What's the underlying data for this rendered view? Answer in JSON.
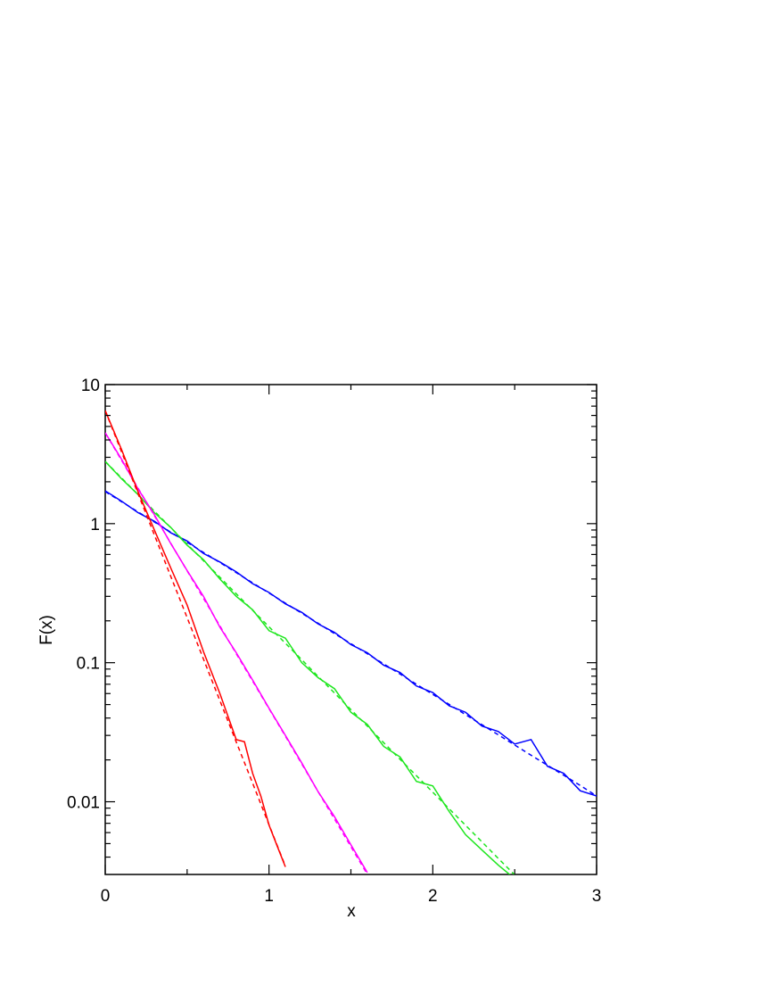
{
  "chart_data": {
    "type": "line",
    "xlabel": "x",
    "ylabel": "F(x)",
    "xlim": [
      0,
      3
    ],
    "xticks": [
      0,
      1,
      2,
      3
    ],
    "xminor_ticks": [
      0.5,
      1.5,
      2.5
    ],
    "ylim": [
      0.003,
      10
    ],
    "yticks": [
      0.01,
      0.1,
      1,
      10
    ],
    "ylog": true,
    "yminor_ticks": [
      0.004,
      0.005,
      0.006,
      0.007,
      0.008,
      0.009,
      0.02,
      0.03,
      0.04,
      0.05,
      0.06,
      0.07,
      0.08,
      0.09,
      0.2,
      0.3,
      0.4,
      0.5,
      0.6,
      0.7,
      0.8,
      0.9,
      2,
      3,
      4,
      5,
      6,
      7,
      8,
      9
    ],
    "series": [
      {
        "color": "#0000ff",
        "dashed": false,
        "x": [
          0,
          0.1,
          0.2,
          0.3,
          0.4,
          0.5,
          0.6,
          0.7,
          0.8,
          0.9,
          1.0,
          1.1,
          1.2,
          1.3,
          1.4,
          1.5,
          1.6,
          1.7,
          1.8,
          1.9,
          2.0,
          2.1,
          2.2,
          2.3,
          2.4,
          2.5,
          2.6,
          2.7,
          2.8,
          2.9,
          3.0
        ],
        "values": [
          1.72,
          1.45,
          1.2,
          1.04,
          0.86,
          0.75,
          0.61,
          0.53,
          0.45,
          0.37,
          0.32,
          0.265,
          0.23,
          0.19,
          0.165,
          0.135,
          0.118,
          0.096,
          0.085,
          0.068,
          0.061,
          0.049,
          0.044,
          0.035,
          0.032,
          0.026,
          0.028,
          0.018,
          0.016,
          0.012,
          0.011
        ]
      },
      {
        "color": "#0000ff",
        "dashed": true,
        "x": [
          0,
          0.1,
          0.2,
          0.3,
          0.4,
          0.5,
          0.6,
          0.7,
          0.8,
          0.9,
          1.0,
          1.1,
          1.2,
          1.3,
          1.4,
          1.5,
          1.6,
          1.7,
          1.8,
          1.9,
          2.0,
          2.1,
          2.2,
          2.3,
          2.4,
          2.5,
          2.6,
          2.7,
          2.8,
          2.9,
          3.0
        ],
        "values": [
          1.7,
          1.437,
          1.215,
          1.027,
          0.868,
          0.734,
          0.621,
          0.525,
          0.444,
          0.375,
          0.317,
          0.268,
          0.227,
          0.192,
          0.162,
          0.137,
          0.116,
          0.098,
          0.0829,
          0.07,
          0.0592,
          0.0501,
          0.0423,
          0.0358,
          0.0303,
          0.0256,
          0.0216,
          0.0183,
          0.0155,
          0.0131,
          0.011
        ]
      },
      {
        "color": "#1ee61e",
        "dashed": false,
        "x": [
          0,
          0.1,
          0.2,
          0.3,
          0.4,
          0.5,
          0.6,
          0.7,
          0.8,
          0.9,
          1.0,
          1.1,
          1.2,
          1.3,
          1.4,
          1.5,
          1.6,
          1.7,
          1.8,
          1.9,
          2.0,
          2.1,
          2.2,
          2.3,
          2.4,
          2.5
        ],
        "values": [
          2.8,
          2.1,
          1.62,
          1.2,
          0.94,
          0.7,
          0.55,
          0.4,
          0.3,
          0.24,
          0.17,
          0.15,
          0.1,
          0.078,
          0.065,
          0.044,
          0.036,
          0.025,
          0.021,
          0.014,
          0.013,
          0.0085,
          0.0058,
          0.0045,
          0.0035,
          0.0028
        ]
      },
      {
        "color": "#1ee61e",
        "dashed": true,
        "x": [
          0,
          0.1,
          0.2,
          0.3,
          0.4,
          0.5,
          0.6,
          0.7,
          0.8,
          0.9,
          1.0,
          1.1,
          1.2,
          1.3,
          1.4,
          1.5,
          1.6,
          1.7,
          1.8,
          1.9,
          2.0,
          2.1,
          2.2,
          2.3,
          2.4,
          2.5
        ],
        "values": [
          2.8,
          2.129,
          1.619,
          1.231,
          0.936,
          0.712,
          0.541,
          0.412,
          0.313,
          0.238,
          0.181,
          0.138,
          0.105,
          0.0796,
          0.0605,
          0.046,
          0.035,
          0.0266,
          0.0202,
          0.0154,
          0.0117,
          0.0089,
          0.00677,
          0.00515,
          0.00391,
          0.00298
        ]
      },
      {
        "color": "#ff00ff",
        "dashed": false,
        "x": [
          0,
          0.1,
          0.2,
          0.3,
          0.4,
          0.5,
          0.6,
          0.7,
          0.8,
          0.9,
          1.0,
          1.1,
          1.2,
          1.3,
          1.4,
          1.5,
          1.6
        ],
        "values": [
          4.5,
          2.9,
          1.78,
          1.16,
          0.72,
          0.46,
          0.3,
          0.18,
          0.118,
          0.075,
          0.047,
          0.03,
          0.019,
          0.0118,
          0.0078,
          0.0049,
          0.0031
        ]
      },
      {
        "color": "#ff00ff",
        "dashed": true,
        "x": [
          0,
          0.1,
          0.2,
          0.3,
          0.4,
          0.5,
          0.6,
          0.7,
          0.8,
          0.9,
          1.0,
          1.1,
          1.2,
          1.3,
          1.4,
          1.5,
          1.6
        ],
        "values": [
          4.5,
          2.849,
          1.804,
          1.143,
          0.723,
          0.458,
          0.29,
          0.184,
          0.116,
          0.0737,
          0.0467,
          0.0296,
          0.0187,
          0.0118,
          0.0075,
          0.00475,
          0.00301
        ]
      },
      {
        "color": "#ff0000",
        "dashed": false,
        "x": [
          0,
          0.1,
          0.2,
          0.3,
          0.4,
          0.5,
          0.6,
          0.7,
          0.8,
          0.85,
          0.9,
          0.95,
          1.0,
          1.05,
          1.1
        ],
        "values": [
          6.5,
          3.4,
          1.7,
          0.9,
          0.48,
          0.26,
          0.12,
          0.06,
          0.028,
          0.027,
          0.016,
          0.011,
          0.0068,
          0.0048,
          0.0034
        ]
      },
      {
        "color": "#ff0000",
        "dashed": true,
        "x": [
          0,
          0.1,
          0.2,
          0.3,
          0.4,
          0.5,
          0.6,
          0.7,
          0.8,
          0.9,
          1.0,
          1.1
        ],
        "values": [
          6.5,
          3.273,
          1.648,
          0.83,
          0.418,
          0.211,
          0.106,
          0.0534,
          0.0269,
          0.0136,
          0.00683,
          0.00344
        ]
      }
    ]
  }
}
